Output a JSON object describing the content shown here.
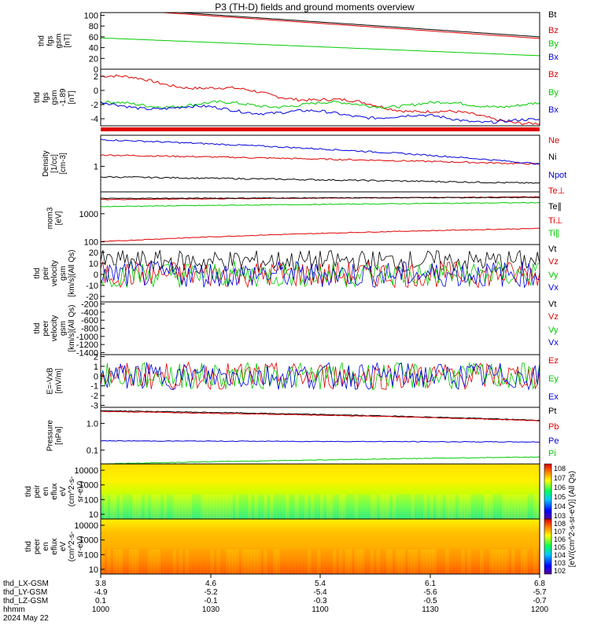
{
  "title": "P3 (TH-D) fields and ground moments overview",
  "colors": {
    "black": "#000000",
    "red": "#e00000",
    "green": "#00cc00",
    "blue": "#0000dd"
  },
  "ephemeris": {
    "rows": [
      {
        "label": "thd_LX-GSM",
        "values": [
          "3.8",
          "4.6",
          "5.4",
          "6.1",
          "6.8"
        ]
      },
      {
        "label": "thd_LY-GSM",
        "values": [
          "-4.9",
          "-5.2",
          "-5.4",
          "-5.6",
          "-5.7"
        ]
      },
      {
        "label": "thd_LZ-GSM",
        "values": [
          "0.1",
          "-0.1",
          "-0.3",
          "-0.5",
          "-0.7"
        ]
      },
      {
        "label": "hhmm",
        "values": [
          "1000",
          "1030",
          "1100",
          "1130",
          "1200"
        ]
      }
    ],
    "date": "2024 May 22"
  },
  "colorbar_label": "[eV/(cm^2-s-sr-eV)] (All Qs)",
  "chart_data": [
    {
      "id": "fgs",
      "type": "line",
      "ylabel": [
        "thd",
        "fgs",
        "gsm",
        "[nT]"
      ],
      "ylim": [
        0,
        105
      ],
      "yticks": [
        "100",
        "80",
        "60",
        "40",
        "20",
        "0"
      ],
      "series": [
        {
          "name": "Bt",
          "color": "black",
          "start": 115,
          "end": 60
        },
        {
          "name": "Bz",
          "color": "red",
          "start": 113,
          "end": 57
        },
        {
          "name": "By",
          "color": "green",
          "start": 58,
          "end": 25
        },
        {
          "name": "Bx",
          "color": "blue",
          "start": 0,
          "end": -1
        }
      ]
    },
    {
      "id": "fgs_zoom",
      "type": "line",
      "ylabel": [
        "thd",
        "fgs",
        "gsm",
        "-1.89",
        "[nT]"
      ],
      "ylim": [
        -5,
        3
      ],
      "yticks": [
        "2",
        "0",
        "-2",
        "-4"
      ],
      "series": [
        {
          "name": "Bz",
          "color": "red",
          "start": 2,
          "end": -4.6
        },
        {
          "name": "By",
          "color": "green",
          "start": -2,
          "end": -2
        },
        {
          "name": "Bx",
          "color": "blue",
          "start": -2,
          "end": -4.5
        }
      ]
    },
    {
      "id": "density",
      "type": "line",
      "log": true,
      "ylabel": [
        "Density",
        "[1/cc]",
        "[cm-3]"
      ],
      "ylim": [
        0.35,
        3.6
      ],
      "yticks": [
        "1"
      ],
      "series": [
        {
          "name": "Ne",
          "color": "red",
          "start": 1.6,
          "end": 1.1
        },
        {
          "name": "Ni",
          "color": "black",
          "start": 0.65,
          "end": 0.5
        },
        {
          "name": "Npot",
          "color": "blue",
          "start": 3,
          "end": 1.1
        }
      ]
    },
    {
      "id": "moments",
      "type": "line",
      "log": true,
      "ylabel": [
        "mom3",
        "[eV]"
      ],
      "ylim": [
        80,
        6000
      ],
      "yticks": [
        "1000",
        "100"
      ],
      "series": [
        {
          "name": "Te⊥",
          "color": "red",
          "start": 3200,
          "end": 4000
        },
        {
          "name": "Te∥",
          "color": "black",
          "start": 3500,
          "end": 3800
        },
        {
          "name": "Ti⊥",
          "color": "red",
          "start": 100,
          "end": 300
        },
        {
          "name": "Ti∥",
          "color": "green",
          "start": 1800,
          "end": 2500
        }
      ]
    },
    {
      "id": "ion_vel",
      "type": "line",
      "ylabel": [
        "thd",
        "peir",
        "velocity",
        "gsm",
        "[km/s](All Qs)"
      ],
      "ylim": [
        -25,
        27
      ],
      "yticks": [
        "20",
        "10",
        "0",
        "-10",
        "-20"
      ],
      "series": [
        {
          "name": "Vt",
          "color": "black",
          "start": 12,
          "end": 12
        },
        {
          "name": "Vz",
          "color": "red",
          "start": 0,
          "end": 0
        },
        {
          "name": "Vy",
          "color": "green",
          "start": 0,
          "end": 0
        },
        {
          "name": "Vx",
          "color": "blue",
          "start": 0,
          "end": 0
        }
      ]
    },
    {
      "id": "elec_vel",
      "type": "line",
      "ylabel": [
        "thd",
        "peer",
        "velocity",
        "gsm",
        "[km/s](All Qs)"
      ],
      "ylim": [
        -1450,
        -150
      ],
      "yticks": [
        "-200",
        "-400",
        "-600",
        "-800",
        "-1000",
        "-1200",
        "-1400"
      ],
      "series": [
        {
          "name": "Vt",
          "color": "black"
        },
        {
          "name": "Vz",
          "color": "red"
        },
        {
          "name": "Vy",
          "color": "green"
        },
        {
          "name": "Vx",
          "color": "blue"
        }
      ]
    },
    {
      "id": "efield",
      "type": "line",
      "ylabel": [
        "E=-VxB",
        "[mV/m]"
      ],
      "ylim": [
        -3.2,
        2.2
      ],
      "yticks": [
        "2",
        "1",
        "0",
        "-1",
        "-2",
        "-3"
      ],
      "series": [
        {
          "name": "Ez",
          "color": "red",
          "start": 0,
          "end": 0
        },
        {
          "name": "Ey",
          "color": "green",
          "start": 0,
          "end": 0
        },
        {
          "name": "Ex",
          "color": "blue",
          "start": 0,
          "end": 0
        }
      ]
    },
    {
      "id": "pressure",
      "type": "line",
      "log": true,
      "ylabel": [
        "Pressure",
        "[nPa]"
      ],
      "ylim": [
        0.03,
        4
      ],
      "yticks": [
        "1.0",
        "0.1"
      ],
      "series": [
        {
          "name": "Pt",
          "color": "black",
          "start": 3,
          "end": 1.3
        },
        {
          "name": "Pb",
          "color": "red",
          "start": 2.8,
          "end": 1.25
        },
        {
          "name": "Pe",
          "color": "blue",
          "start": 0.22,
          "end": 0.2
        },
        {
          "name": "Pi",
          "color": "green",
          "start": 0.03,
          "end": 0.055
        }
      ]
    },
    {
      "id": "ion_spec",
      "type": "heatmap",
      "ylabel": [
        "thd",
        "peir",
        "en",
        "eflux",
        "eV",
        "(cm^2-s-",
        "sr-eV)"
      ],
      "yticks": [
        "10000",
        "1000",
        "100",
        "10"
      ]
    },
    {
      "id": "elec_spec",
      "type": "heatmap",
      "ylabel": [
        "thd",
        "peer",
        "en",
        "eflux",
        "eV",
        "(cm^2-s-",
        "sr-eV)"
      ],
      "yticks": [
        "10000",
        "1000",
        "100",
        "10"
      ]
    }
  ],
  "colorbars": [
    {
      "ticks": [
        "10^8",
        "10^7",
        "10^6",
        "10^5",
        "10^4",
        "10^3"
      ]
    },
    {
      "ticks": [
        "10^8",
        "10^7",
        "10^6",
        "10^5",
        "10^4",
        "10^3",
        "10^2"
      ]
    }
  ]
}
